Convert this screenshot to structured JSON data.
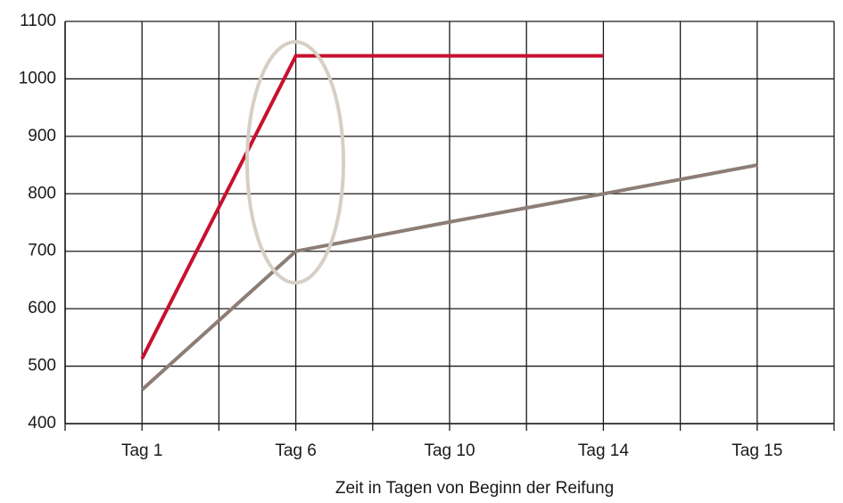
{
  "chart_data": {
    "type": "line",
    "xlabel": "Zeit in Tagen von Beginn der Reifung",
    "categories": [
      "Tag 1",
      "Tag 6",
      "Tag 10",
      "Tag 14",
      "Tag 15"
    ],
    "series": [
      {
        "color": "#c8102e",
        "values": [
          513,
          1040,
          1040,
          1040,
          null
        ]
      },
      {
        "color": "#8c7d75",
        "values": [
          459,
          700,
          751,
          800,
          850
        ]
      }
    ],
    "ylim": [
      400,
      1100
    ],
    "yticks": [
      400,
      500,
      600,
      700,
      800,
      900,
      1000,
      1100
    ],
    "grid": true
  }
}
